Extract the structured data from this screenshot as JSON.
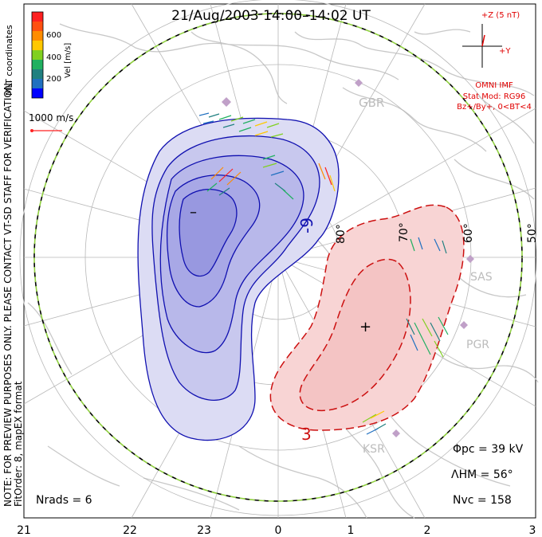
{
  "title": "21/Aug/2003 14:00–14:02 UT",
  "velocity_scale": {
    "coords_label": "MLT coordinates",
    "unit_label": "Vel [m/s]",
    "ticks": [
      "600",
      "400",
      "200"
    ],
    "colors": [
      "#ff2020",
      "#ff8c00",
      "#ffc800",
      "#80d020",
      "#20b060",
      "#208080",
      "#2070c0",
      "#0000ff"
    ]
  },
  "vector_scale_label": "1000 m/s",
  "imf": {
    "z_label": "+Z (5 nT)",
    "y_label": "+Y",
    "source": "OMNI IMF",
    "model": "Stat Mod: RG96",
    "condition": "Bz+/By+, 0<BT<4"
  },
  "stations": [
    "GBR",
    "SAS",
    "PGR",
    "KSR"
  ],
  "latitude_labels": [
    "80°",
    "70°",
    "60°",
    "50°"
  ],
  "mlt_labels": [
    "21",
    "22",
    "23",
    "0",
    "1",
    "2",
    "3"
  ],
  "contour_labels": {
    "negative": "-9",
    "positive": "3"
  },
  "markers": {
    "min": "–",
    "max": "+"
  },
  "side_note_1": "NOTE: FOR PREVIEW PURPOSES ONLY. PLEASE CONTACT VT-SD STAFF FOR VERIFICATION.",
  "side_note_2": "FitOrder: 8, mapEX format",
  "stats": {
    "phi_pc": "Φpc = 39 kV",
    "lambda_hm": "ΛHM = 56°",
    "n_vc": "Nvc = 158",
    "n_rads": "Nrads = 6"
  },
  "colors": {
    "negative_contour": "#1010b0",
    "positive_contour": "#cc1010",
    "negative_fill": "#c8c8f0",
    "positive_fill": "#f8d0d0",
    "coastline": "#c8c8c8",
    "grid": "#b8b8b8",
    "imf_text": "#e00000"
  }
}
